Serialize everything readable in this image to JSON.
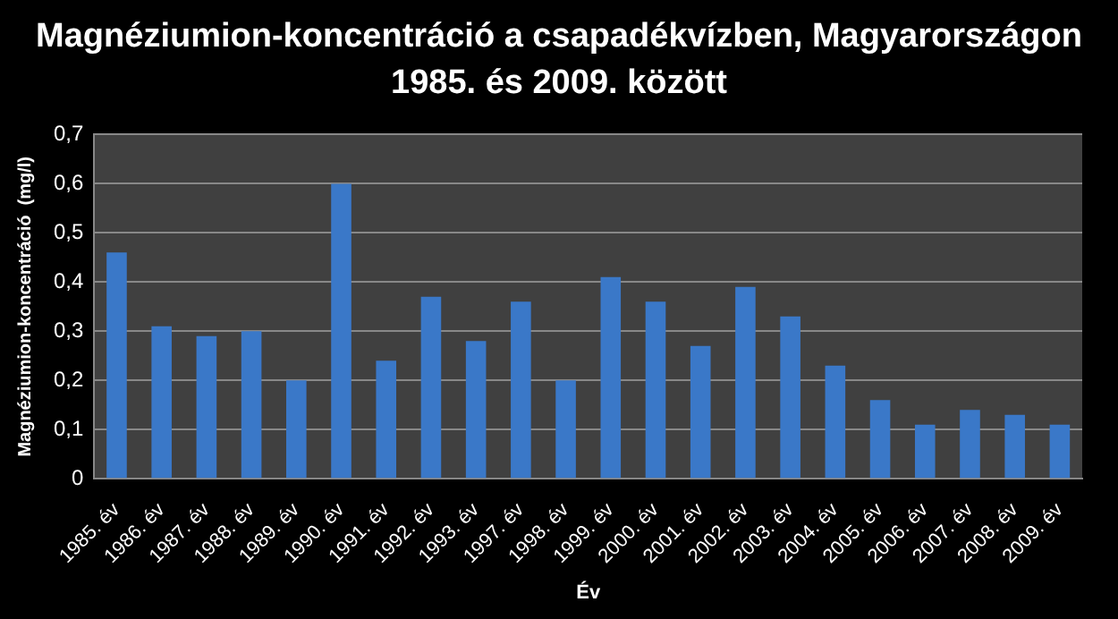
{
  "chart_data": {
    "type": "bar",
    "title": "Magnéziumion-koncentráció a csapadékvízben, Magyarországon 1985. és 2009. között",
    "xlabel": "Év",
    "ylabel": "Magnéziumion-koncentráció  (mg/l)",
    "categories": [
      "1985. év",
      "1986. év",
      "1987. év",
      "1988. év",
      "1989. év",
      "1990. év",
      "1991. év",
      "1992. év",
      "1993. év",
      "1997. év",
      "1998. év",
      "1999. év",
      "2000. év",
      "2001. év",
      "2002. év",
      "2003. év",
      "2004. év",
      "2005. év",
      "2006. év",
      "2007. év",
      "2008. év",
      "2009. év"
    ],
    "values": [
      0.46,
      0.31,
      0.29,
      0.3,
      0.2,
      0.6,
      0.24,
      0.37,
      0.28,
      0.36,
      0.2,
      0.41,
      0.36,
      0.27,
      0.39,
      0.33,
      0.23,
      0.16,
      0.11,
      0.14,
      0.13,
      0.11
    ],
    "color": "#3a78c8",
    "ylim": [
      0,
      0.7
    ],
    "yticks": [
      0,
      {
        "value": 0.1,
        "label": "0,1"
      },
      {
        "value": 0.2,
        "label": "0,2"
      },
      {
        "value": 0.3,
        "label": "0,3"
      },
      {
        "value": 0.4,
        "label": "0,4"
      },
      {
        "value": 0.5,
        "label": "0,5"
      },
      {
        "value": 0.6,
        "label": "0,6"
      },
      {
        "value": 0.7,
        "label": "0,7"
      }
    ],
    "grid": "y",
    "legend": false
  }
}
